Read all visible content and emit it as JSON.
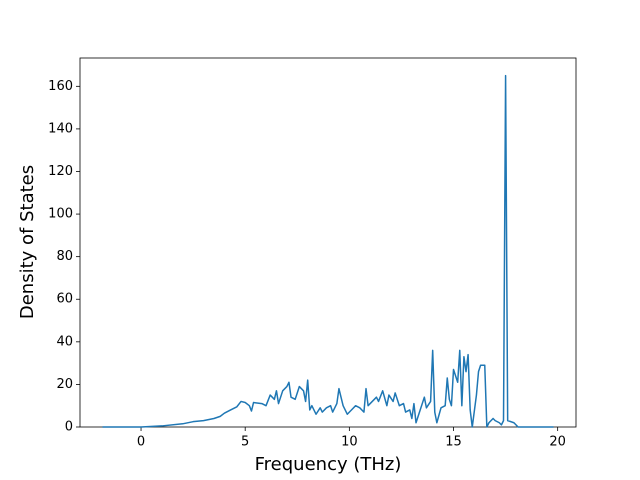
{
  "chart_data": {
    "type": "line",
    "x_label": "Frequency (THz)",
    "y_label": "Density of States",
    "x": [
      -1.85,
      0,
      1,
      2,
      2.5,
      3,
      3.5,
      3.8,
      4,
      4.3,
      4.6,
      4.8,
      5,
      5.2,
      5.3,
      5.4,
      5.8,
      6.0,
      6.2,
      6.4,
      6.5,
      6.6,
      6.8,
      7.0,
      7.1,
      7.2,
      7.4,
      7.6,
      7.8,
      7.9,
      8.0,
      8.1,
      8.2,
      8.4,
      8.6,
      8.7,
      8.9,
      9.1,
      9.2,
      9.4,
      9.5,
      9.7,
      9.9,
      10.1,
      10.3,
      10.5,
      10.7,
      10.8,
      10.9,
      11.1,
      11.3,
      11.4,
      11.6,
      11.8,
      11.9,
      12.1,
      12.2,
      12.4,
      12.6,
      12.7,
      12.9,
      13.0,
      13.1,
      13.2,
      13.4,
      13.6,
      13.7,
      13.9,
      14.0,
      14.1,
      14.2,
      14.4,
      14.6,
      14.7,
      14.8,
      14.9,
      15.0,
      15.2,
      15.3,
      15.4,
      15.5,
      15.6,
      15.7,
      15.8,
      15.9,
      16.1,
      16.2,
      16.3,
      16.5,
      16.6,
      16.7,
      16.9,
      17.0,
      17.2,
      17.3,
      17.4,
      17.5,
      17.6,
      17.9,
      18.1,
      19.8
    ],
    "series": [
      {
        "name": "Density of States",
        "color": "#1f77b4",
        "values": [
          0,
          0,
          0.5,
          1.5,
          2.5,
          3,
          4,
          5,
          6.5,
          8,
          9.5,
          12,
          11.5,
          10,
          7.5,
          11.5,
          11,
          10,
          15,
          13,
          17,
          11,
          17,
          19,
          21,
          14,
          13,
          19,
          17,
          12,
          22,
          8,
          10,
          6,
          9,
          7,
          9,
          10,
          7,
          11,
          18,
          10,
          6,
          8,
          10,
          9,
          7,
          18,
          10,
          12,
          14,
          12,
          17,
          10,
          15,
          12,
          16,
          10,
          11,
          7,
          8,
          4,
          11,
          2,
          8,
          14,
          9,
          12,
          36,
          7,
          2,
          9,
          10,
          23,
          13,
          10,
          27,
          21,
          36,
          10,
          33,
          26,
          34,
          8,
          0,
          15,
          26,
          29,
          29,
          0,
          2,
          4,
          3,
          2,
          1,
          3,
          165,
          3,
          2,
          0,
          0
        ]
      }
    ],
    "xlim": [
      -2.93,
      20.88
    ],
    "ylim": [
      0,
      173.3
    ],
    "xticks": [
      0,
      5,
      10,
      15,
      20
    ],
    "yticks": [
      0,
      20,
      40,
      60,
      80,
      100,
      120,
      140,
      160
    ],
    "grid": false
  }
}
